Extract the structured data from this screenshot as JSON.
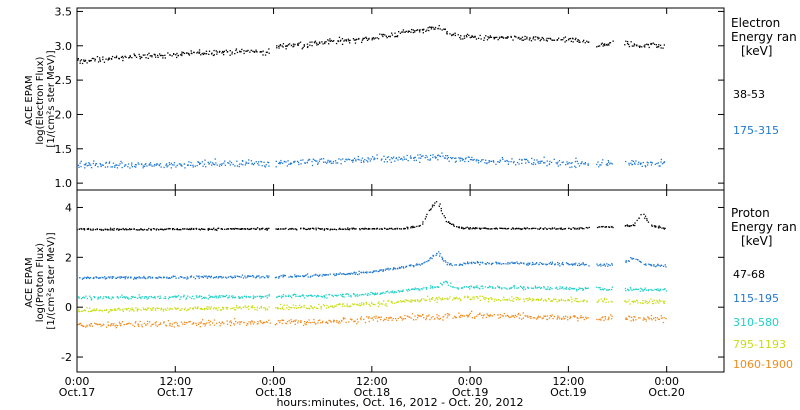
{
  "footer_xlabel": "hours:minutes, Oct. 16, 2012 - Oct. 20, 2012",
  "x_ticks": [
    {
      "hours": 0,
      "time": "0:00",
      "date": "Oct.17"
    },
    {
      "hours": 12,
      "time": "12:00",
      "date": "Oct.17"
    },
    {
      "hours": 24,
      "time": "0:00",
      "date": "Oct.18"
    },
    {
      "hours": 36,
      "time": "12:00",
      "date": "Oct.18"
    },
    {
      "hours": 48,
      "time": "0:00",
      "date": "Oct.19"
    },
    {
      "hours": 60,
      "time": "12:00",
      "date": "Oct.19"
    },
    {
      "hours": 72,
      "time": "0:00",
      "date": "Oct.20"
    }
  ],
  "colors": {
    "black": "#000000",
    "blue": "#1f78d0",
    "cyan": "#20d0c8",
    "yellow": "#c8dc14",
    "orange": "#f08c1e"
  },
  "chart_data": [
    {
      "type": "scatter",
      "ylabel_lines": [
        "ACE EPAM",
        "log(Electron Flux)",
        "[1/(cm²s ster MeV)]"
      ],
      "legend_title_lines": [
        "Electron",
        "Energy ran"
      ],
      "legend_unit": "[keV]",
      "xlim_hours": [
        0,
        79
      ],
      "ylim": [
        0.9,
        3.55
      ],
      "yticks": [
        1.0,
        1.5,
        2.0,
        2.5,
        3.0,
        3.5
      ],
      "ytick_labels": [
        "1.0",
        "1.5",
        "2.0",
        "2.5",
        "3.0",
        "3.5"
      ],
      "gaps_hours": [
        [
          23.5,
          24.2
        ],
        [
          62.5,
          63.4
        ],
        [
          65.3,
          66.8
        ]
      ],
      "data_end_hours": 71.8,
      "series": [
        {
          "name": "38-53",
          "color": "#000000",
          "x": [
            0,
            4,
            8,
            12,
            16,
            20,
            23.4,
            24.3,
            28,
            32,
            36,
            40,
            44,
            46,
            48,
            52,
            56,
            60,
            62.4,
            63.5,
            65.2,
            66.9,
            68,
            71.8
          ],
          "y": [
            2.78,
            2.82,
            2.86,
            2.88,
            2.91,
            2.93,
            2.92,
            3.0,
            3.03,
            3.08,
            3.12,
            3.2,
            3.28,
            3.15,
            3.14,
            3.12,
            3.1,
            3.09,
            3.08,
            3.0,
            3.05,
            3.04,
            3.02,
            3.01
          ],
          "noise": 0.035
        },
        {
          "name": "175-315",
          "color": "#1f78d0",
          "x": [
            0,
            6,
            12,
            18,
            23.4,
            24.3,
            30,
            36,
            40,
            44,
            48,
            54,
            60,
            62.4,
            63.5,
            65.2,
            66.9,
            71.8
          ],
          "y": [
            1.27,
            1.27,
            1.28,
            1.3,
            1.3,
            1.31,
            1.32,
            1.35,
            1.37,
            1.39,
            1.35,
            1.32,
            1.3,
            1.3,
            1.29,
            1.29,
            1.3,
            1.3
          ],
          "noise": 0.045
        }
      ]
    },
    {
      "type": "scatter",
      "ylabel_lines": [
        "ACE EPAM",
        "log(Proton Flux)",
        "[1/(cm²s ster MeV)]"
      ],
      "legend_title_lines": [
        "Proton",
        "Energy ran"
      ],
      "legend_unit": "[keV]",
      "xlim_hours": [
        0,
        79
      ],
      "ylim": [
        -2.6,
        4.7
      ],
      "yticks": [
        -2,
        0,
        2,
        4
      ],
      "ytick_labels": [
        "-2",
        "0",
        "2",
        "4"
      ],
      "gaps_hours": [
        [
          23.5,
          24.2
        ],
        [
          62.5,
          63.4
        ],
        [
          65.3,
          66.8
        ]
      ],
      "data_end_hours": 71.8,
      "series": [
        {
          "name": "47-68",
          "color": "#000000",
          "x": [
            0,
            10,
            20,
            30,
            40,
            42,
            43,
            44,
            45,
            46,
            47,
            50,
            60,
            68,
            69,
            70,
            71.8
          ],
          "y": [
            3.15,
            3.15,
            3.16,
            3.16,
            3.17,
            3.3,
            3.9,
            4.3,
            3.5,
            3.3,
            3.2,
            3.18,
            3.17,
            3.3,
            3.8,
            3.3,
            3.17
          ],
          "noise": 0.03
        },
        {
          "name": "115-195",
          "color": "#1f78d0",
          "x": [
            0,
            10,
            20,
            28,
            34,
            38,
            42,
            44,
            45,
            46,
            48,
            56,
            60,
            66,
            68,
            69,
            70,
            71.8
          ],
          "y": [
            1.2,
            1.22,
            1.24,
            1.28,
            1.38,
            1.55,
            1.75,
            2.2,
            1.8,
            1.7,
            1.8,
            1.78,
            1.75,
            1.7,
            2.0,
            1.75,
            1.7,
            1.68
          ],
          "noise": 0.05
        },
        {
          "name": "310-580",
          "color": "#20d0c8",
          "x": [
            0,
            10,
            20,
            30,
            36,
            40,
            44,
            45,
            46,
            48,
            56,
            62,
            66,
            71.8
          ],
          "y": [
            0.4,
            0.42,
            0.44,
            0.48,
            0.55,
            0.7,
            0.85,
            1.05,
            0.8,
            0.82,
            0.8,
            0.76,
            0.75,
            0.73
          ],
          "noise": 0.06
        },
        {
          "name": "795-1193",
          "color": "#c8dc14",
          "x": [
            0,
            10,
            20,
            30,
            36,
            40,
            44,
            48,
            56,
            62,
            66,
            71.8
          ],
          "y": [
            -0.1,
            -0.05,
            0.0,
            0.05,
            0.15,
            0.25,
            0.35,
            0.38,
            0.32,
            0.28,
            0.26,
            0.25
          ],
          "noise": 0.08
        },
        {
          "name": "1060-1900",
          "color": "#f08c1e",
          "x": [
            0,
            10,
            20,
            30,
            36,
            40,
            44,
            48,
            56,
            62,
            66,
            71.8
          ],
          "y": [
            -0.7,
            -0.65,
            -0.6,
            -0.55,
            -0.45,
            -0.4,
            -0.35,
            -0.3,
            -0.35,
            -0.4,
            -0.42,
            -0.45
          ],
          "noise": 0.11
        }
      ]
    }
  ]
}
